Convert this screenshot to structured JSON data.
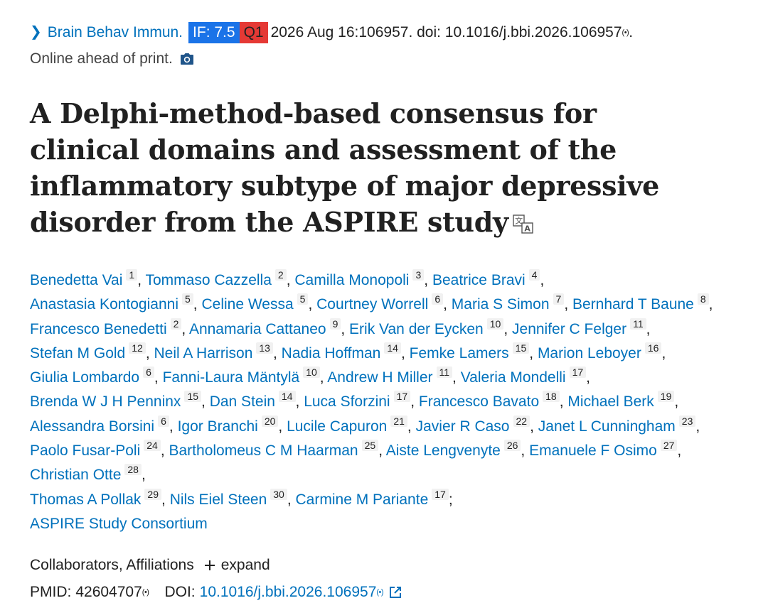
{
  "citation": {
    "journal": "Brain Behav Immun.",
    "impact_factor": "IF: 7.5",
    "quartile": "Q1",
    "details": "2026 Aug 16:106957. doi: 10.1016/j.bbi.2026.106957",
    "signal_mark": "(•)",
    "trailing": ".",
    "status": "Online ahead of print.",
    "badge_colors": {
      "if_bg": "#1a73e8",
      "q_bg": "#e53935"
    }
  },
  "title": "A Delphi-method-based consensus for clinical domains and assessment of the inflammatory subtype of major depressive disorder from the ASPIRE study",
  "authors": [
    {
      "name": "Benedetta Vai",
      "aff": "1"
    },
    {
      "name": "Tommaso Cazzella",
      "aff": "2"
    },
    {
      "name": "Camilla Monopoli",
      "aff": "3"
    },
    {
      "name": "Beatrice Bravi",
      "aff": "4"
    },
    {
      "name": "Anastasia Kontogianni",
      "aff": "5"
    },
    {
      "name": "Celine Wessa",
      "aff": "5"
    },
    {
      "name": "Courtney Worrell",
      "aff": "6"
    },
    {
      "name": "Maria S Simon",
      "aff": "7"
    },
    {
      "name": "Bernhard T Baune",
      "aff": "8"
    },
    {
      "name": "Francesco Benedetti",
      "aff": "2"
    },
    {
      "name": "Annamaria Cattaneo",
      "aff": "9"
    },
    {
      "name": "Erik Van der Eycken",
      "aff": "10"
    },
    {
      "name": "Jennifer C Felger",
      "aff": "11"
    },
    {
      "name": "Stefan M Gold",
      "aff": "12"
    },
    {
      "name": "Neil A Harrison",
      "aff": "13"
    },
    {
      "name": "Nadia Hoffman",
      "aff": "14"
    },
    {
      "name": "Femke Lamers",
      "aff": "15"
    },
    {
      "name": "Marion Leboyer",
      "aff": "16"
    },
    {
      "name": "Giulia Lombardo",
      "aff": "6"
    },
    {
      "name": "Fanni-Laura Mäntylä",
      "aff": "10"
    },
    {
      "name": "Andrew H Miller",
      "aff": "11"
    },
    {
      "name": "Valeria Mondelli",
      "aff": "17"
    },
    {
      "name": "Brenda W J H Penninx",
      "aff": "15"
    },
    {
      "name": "Dan Stein",
      "aff": "14"
    },
    {
      "name": "Luca Sforzini",
      "aff": "17"
    },
    {
      "name": "Francesco Bavato",
      "aff": "18"
    },
    {
      "name": "Michael Berk",
      "aff": "19"
    },
    {
      "name": "Alessandra Borsini",
      "aff": "6"
    },
    {
      "name": "Igor Branchi",
      "aff": "20"
    },
    {
      "name": "Lucile Capuron",
      "aff": "21"
    },
    {
      "name": "Javier R Caso",
      "aff": "22"
    },
    {
      "name": "Janet L Cunningham",
      "aff": "23"
    },
    {
      "name": "Paolo Fusar-Poli",
      "aff": "24"
    },
    {
      "name": "Bartholomeus C M Haarman",
      "aff": "25"
    },
    {
      "name": "Aiste Lengvenyte",
      "aff": "26"
    },
    {
      "name": "Emanuele F Osimo",
      "aff": "27"
    },
    {
      "name": "Christian Otte",
      "aff": "28"
    },
    {
      "name": "Thomas A Pollak",
      "aff": "29"
    },
    {
      "name": "Nils Eiel Steen",
      "aff": "30"
    },
    {
      "name": "Carmine M Pariante",
      "aff": "17"
    }
  ],
  "author_line_breaks_after": [
    3,
    8,
    12,
    17,
    21,
    26,
    31,
    36
  ],
  "consortium": "ASPIRE Study Consortium",
  "expand_row": {
    "label": "Collaborators, Affiliations",
    "action": "expand"
  },
  "ids": {
    "pmid_label": "PMID:",
    "pmid": "42604707",
    "doi_label": "DOI:",
    "doi": "10.1016/j.bbi.2026.106957"
  },
  "icons": {
    "chevron": "chevron-right-icon",
    "camera": "camera-icon",
    "translate": "translate-icon",
    "plus": "plus-icon",
    "external": "external-link-icon",
    "signal": "signal-icon"
  }
}
